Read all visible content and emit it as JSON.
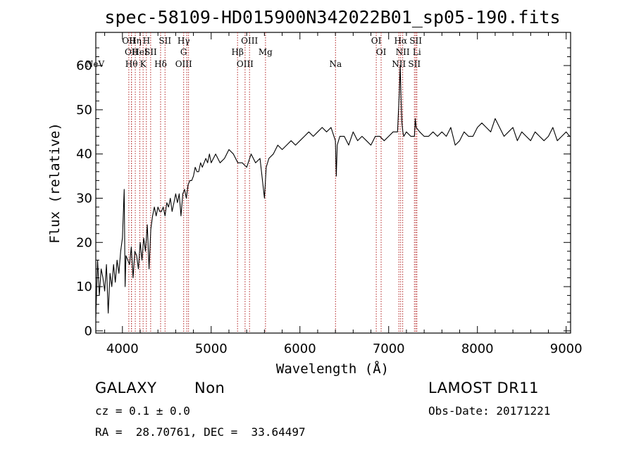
{
  "chart_data": {
    "type": "line",
    "title": "spec-58109-HD015900N342022B01_sp05-190.fits",
    "xlabel": "Wavelength (Å)",
    "ylabel": "Flux (relative)",
    "xlim": [
      3700,
      9050
    ],
    "ylim": [
      -0.5,
      67.5
    ],
    "xticks": [
      4000,
      5000,
      6000,
      7000,
      8000,
      9000
    ],
    "yticks": [
      0,
      10,
      20,
      30,
      40,
      50,
      60
    ],
    "grid": false,
    "line_color": "#000000",
    "marker_color": "#b22222",
    "series": [
      {
        "x": [
          3700,
          3720,
          3740,
          3760,
          3780,
          3800,
          3820,
          3840,
          3860,
          3880,
          3900,
          3920,
          3940,
          3960,
          3980,
          4000,
          4020,
          4030,
          4040,
          4060,
          4080,
          4100,
          4120,
          4140,
          4160,
          4180,
          4200,
          4220,
          4240,
          4260,
          4280,
          4300,
          4320,
          4340,
          4360,
          4380,
          4400,
          4420,
          4440,
          4460,
          4480,
          4500,
          4520,
          4540,
          4560,
          4580,
          4600,
          4620,
          4640,
          4660,
          4680,
          4700,
          4720,
          4740,
          4760,
          4780,
          4800,
          4820,
          4840,
          4860,
          4880,
          4900,
          4920,
          4940,
          4960,
          4980,
          5000,
          5050,
          5100,
          5150,
          5200,
          5250,
          5300,
          5350,
          5400,
          5450,
          5500,
          5550,
          5600,
          5620,
          5650,
          5700,
          5750,
          5800,
          5850,
          5900,
          5950,
          6000,
          6050,
          6100,
          6150,
          6200,
          6250,
          6300,
          6350,
          6400,
          6410,
          6420,
          6450,
          6500,
          6550,
          6600,
          6650,
          6700,
          6750,
          6800,
          6850,
          6900,
          6950,
          7000,
          7050,
          7100,
          7120,
          7130,
          7140,
          7150,
          7160,
          7170,
          7200,
          7250,
          7290,
          7300,
          7310,
          7350,
          7400,
          7450,
          7500,
          7550,
          7600,
          7650,
          7700,
          7750,
          7800,
          7850,
          7900,
          7950,
          8000,
          8050,
          8100,
          8150,
          8200,
          8250,
          8300,
          8350,
          8400,
          8450,
          8500,
          8550,
          8600,
          8650,
          8700,
          8750,
          8800,
          8850,
          8900,
          8950,
          9000,
          9040
        ],
        "y": [
          3,
          16,
          8,
          14,
          12,
          9,
          15,
          4,
          13,
          10,
          15,
          11,
          16,
          13,
          18,
          21,
          32,
          10,
          17,
          16,
          15,
          19,
          12,
          18,
          17,
          14,
          20,
          16,
          21,
          18,
          24,
          14,
          23,
          26,
          28,
          26,
          28,
          27,
          27,
          28,
          26,
          29,
          28,
          30,
          27,
          29,
          31,
          29,
          31,
          26,
          31,
          32,
          30,
          33,
          34,
          34,
          35,
          37,
          36,
          36,
          38,
          37,
          38,
          39,
          38,
          40,
          38,
          40,
          38,
          39,
          41,
          40,
          38,
          38,
          37,
          40,
          38,
          39,
          30,
          37,
          39,
          40,
          42,
          41,
          42,
          43,
          42,
          43,
          44,
          45,
          44,
          45,
          46,
          45,
          46,
          43,
          35,
          42,
          44,
          44,
          42,
          45,
          43,
          44,
          43,
          42,
          44,
          44,
          43,
          44,
          45,
          45,
          54,
          60,
          52,
          47,
          45,
          44,
          45,
          44,
          44,
          48,
          46,
          45,
          44,
          44,
          45,
          44,
          45,
          44,
          46,
          42,
          43,
          45,
          44,
          44,
          46,
          47,
          46,
          45,
          48,
          46,
          44,
          45,
          46,
          43,
          45,
          44,
          43,
          45,
          44,
          43,
          44,
          46,
          43,
          44,
          45,
          44
        ]
      }
    ],
    "lines": [
      {
        "x": 4072,
        "labels": [
          "OII"
        ]
      },
      {
        "x": 4102,
        "labels": [
          "OII"
        ]
      },
      {
        "x": 4102,
        "labels": [
          "Hθ"
        ]
      },
      {
        "x": 4145,
        "labels": [
          "Hη"
        ]
      },
      {
        "x": 4196,
        "labels": [
          "HeI"
        ]
      },
      {
        "x": 4233,
        "labels": [
          "K"
        ]
      },
      {
        "x": 4270,
        "labels": [
          "H"
        ]
      },
      {
        "x": 4318,
        "labels": [
          "SII"
        ]
      },
      {
        "x": 4430,
        "labels": [
          "Hδ"
        ]
      },
      {
        "x": 4480,
        "labels": [
          "SII"
        ]
      },
      {
        "x": 4690,
        "labels": [
          "Hγ",
          "G",
          "OIII"
        ]
      },
      {
        "x": 4725,
        "labels": []
      },
      {
        "x": 4745,
        "labels": []
      },
      {
        "x": 5297,
        "labels": [
          "Hβ"
        ]
      },
      {
        "x": 5382,
        "labels": [
          "OIII"
        ]
      },
      {
        "x": 5432,
        "labels": [
          "OIII"
        ]
      },
      {
        "x": 5612,
        "labels": [
          "Mg"
        ]
      },
      {
        "x": 6401,
        "labels": [
          "Na"
        ]
      },
      {
        "x": 6860,
        "labels": [
          "OI"
        ]
      },
      {
        "x": 6915,
        "labels": [
          "OI"
        ]
      },
      {
        "x": 7115,
        "labels": [
          "NII"
        ]
      },
      {
        "x": 7135,
        "labels": [
          "Hα"
        ]
      },
      {
        "x": 7158,
        "labels": [
          "NII"
        ]
      },
      {
        "x": 7290,
        "labels": [
          "SII"
        ]
      },
      {
        "x": 7305,
        "labels": [
          "SII"
        ]
      },
      {
        "x": 7318,
        "labels": [
          "Li"
        ]
      }
    ],
    "neon_label": "NeV"
  },
  "info": {
    "object_class": "GALAXY",
    "subclass": "Non",
    "survey": "LAMOST DR11",
    "redshift": "cz = 0.1 ± 0.0",
    "obs_date": "Obs-Date: 20171221",
    "coords": "RA =  28.70761, DEC =  33.64497"
  }
}
